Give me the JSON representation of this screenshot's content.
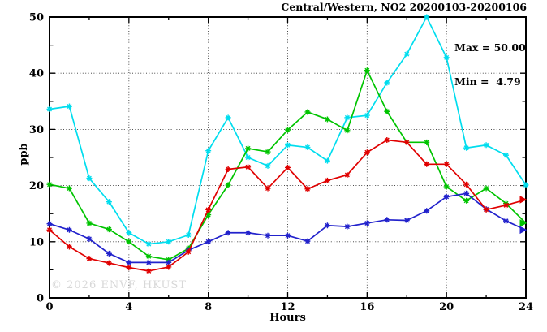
{
  "window": {
    "title": "Central/Western, NO2 20200103-20200106"
  },
  "stats": {
    "max": "Max = 50.00",
    "min": "Min =  4.79"
  },
  "watermark": "© 2026 ENVF, HKUST",
  "chart_data": {
    "type": "line",
    "title": "Central/Western, NO2 20200103-20200106",
    "xlabel": "Hours",
    "ylabel": "ppb",
    "xlim": [
      0,
      24
    ],
    "ylim": [
      0,
      50
    ],
    "grid": true,
    "xticks_major": [
      0,
      4,
      8,
      12,
      16,
      20,
      24
    ],
    "xticks_minor": [
      2,
      6,
      10,
      14,
      18,
      22
    ],
    "yticks_major": [
      0,
      10,
      20,
      30,
      40,
      50
    ],
    "yticks_minor": [
      5,
      15,
      25,
      35,
      45
    ],
    "annotations": {
      "max": 50.0,
      "min": 4.79
    },
    "x": [
      0,
      1,
      2,
      3,
      4,
      5,
      6,
      7,
      8,
      9,
      10,
      11,
      12,
      13,
      14,
      15,
      16,
      17,
      18,
      19,
      20,
      21,
      22,
      23,
      24
    ],
    "series": [
      {
        "name": "cyan",
        "color": "#00DDEE",
        "arrow_end": false,
        "values": [
          33.6,
          34.1,
          21.3,
          17.1,
          11.6,
          9.6,
          10.0,
          11.2,
          26.2,
          32.1,
          25.0,
          23.5,
          27.2,
          26.8,
          24.4,
          32.1,
          32.5,
          38.3,
          43.4,
          50.0,
          42.8,
          26.7,
          27.2,
          25.4,
          20.1
        ]
      },
      {
        "name": "green",
        "color": "#00C400",
        "arrow_end": true,
        "values": [
          20.2,
          19.5,
          13.3,
          12.2,
          10.0,
          7.4,
          6.8,
          8.8,
          14.8,
          20.1,
          26.6,
          26.0,
          29.9,
          33.1,
          31.8,
          29.8,
          40.5,
          33.2,
          27.7,
          27.7,
          19.8,
          17.3,
          19.5,
          16.8,
          13.3
        ]
      },
      {
        "name": "blue",
        "color": "#2222CC",
        "arrow_end": true,
        "values": [
          13.2,
          12.1,
          10.5,
          7.9,
          6.3,
          6.3,
          6.3,
          8.5,
          10.0,
          11.6,
          11.6,
          11.1,
          11.1,
          10.1,
          12.9,
          12.7,
          13.3,
          13.9,
          13.8,
          15.5,
          18.0,
          18.6,
          15.8,
          13.7,
          12.1
        ]
      },
      {
        "name": "red",
        "color": "#E00000",
        "arrow_end": true,
        "values": [
          12.1,
          9.1,
          7.0,
          6.2,
          5.4,
          4.79,
          5.5,
          8.2,
          15.7,
          22.9,
          23.3,
          19.5,
          23.2,
          19.4,
          20.9,
          21.9,
          25.9,
          28.1,
          27.7,
          23.8,
          23.8,
          20.2,
          15.7,
          16.5,
          17.5
        ]
      }
    ]
  }
}
